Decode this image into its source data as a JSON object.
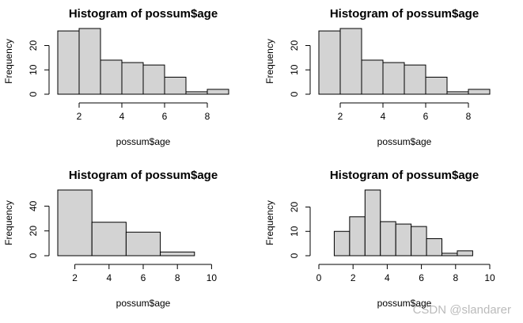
{
  "chart_data": [
    {
      "type": "histogram",
      "title": "Histogram of possum$age",
      "xlabel": "possum$age",
      "ylabel": "Frequency",
      "bins": [
        1,
        2,
        3,
        4,
        5,
        6,
        7,
        8,
        9
      ],
      "values": [
        26,
        27,
        14,
        13,
        12,
        7,
        1,
        2
      ],
      "color": "#d3d3d3",
      "xlim": [
        1,
        9
      ],
      "xticks": [
        2,
        4,
        6,
        8
      ],
      "ylim": [
        0,
        27
      ],
      "yticks": [
        0,
        10,
        20
      ]
    },
    {
      "type": "histogram",
      "title": "Histogram of possum$age",
      "xlabel": "possum$age",
      "ylabel": "Frequency",
      "bins": [
        1,
        2,
        3,
        4,
        5,
        6,
        7,
        8,
        9
      ],
      "values": [
        26,
        27,
        14,
        13,
        12,
        7,
        1,
        2
      ],
      "color": "#d3d3d3",
      "xlim": [
        1,
        9
      ],
      "xticks": [
        2,
        4,
        6,
        8
      ],
      "ylim": [
        0,
        27
      ],
      "yticks": [
        0,
        10,
        20
      ]
    },
    {
      "type": "histogram",
      "title": "Histogram of possum$age",
      "xlabel": "possum$age",
      "ylabel": "Frequency",
      "bins": [
        1,
        3,
        5,
        7,
        9,
        11
      ],
      "values": [
        53,
        27,
        19,
        3,
        0
      ],
      "color": "#d3d3d3",
      "xlim": [
        1,
        11
      ],
      "xticks": [
        2,
        4,
        6,
        8,
        10
      ],
      "ylim": [
        0,
        53
      ],
      "yticks": [
        0,
        20,
        40
      ]
    },
    {
      "type": "histogram",
      "title": "Histogram of possum$age",
      "xlabel": "possum$age",
      "ylabel": "Frequency",
      "bins": [
        0.9,
        1.8,
        2.7,
        3.6,
        4.5,
        5.4,
        6.3,
        7.2,
        8.1,
        9.0
      ],
      "values": [
        10,
        16,
        27,
        14,
        13,
        12,
        7,
        1,
        2
      ],
      "color": "#d3d3d3",
      "xlim": [
        0,
        10
      ],
      "xticks": [
        0,
        2,
        4,
        6,
        8,
        10
      ],
      "ylim": [
        0,
        27
      ],
      "yticks": [
        0,
        10,
        20
      ]
    }
  ],
  "watermark": "CSDN @slandarer"
}
